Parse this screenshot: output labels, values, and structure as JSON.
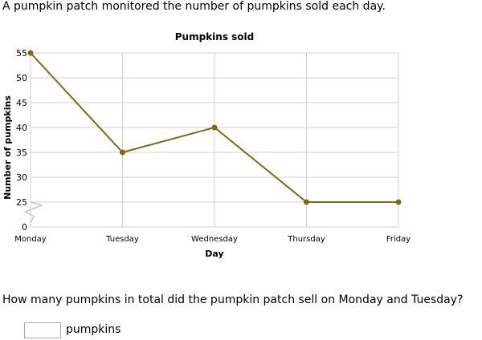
{
  "question_intro": "A pumpkin patch monitored the number of pumpkins sold each day.",
  "question": "How many pumpkins in total did the pumpkin patch sell on Monday and Tuesday?",
  "answer": {
    "value": "",
    "unit": "pumpkins"
  },
  "chart_data": {
    "type": "line",
    "title": "Pumpkins sold",
    "xlabel": "Day",
    "ylabel": "Number of pumpkins",
    "categories": [
      "Monday",
      "Tuesday",
      "Wednesday",
      "Thursday",
      "Friday"
    ],
    "values": [
      55,
      35,
      40,
      25,
      25
    ],
    "ylim": [
      25,
      55
    ],
    "yticks": [
      "0",
      "25",
      "30",
      "35",
      "40",
      "45",
      "50",
      "55"
    ],
    "axis_break": true,
    "grid": true,
    "line_color": "#7f6a0f"
  }
}
